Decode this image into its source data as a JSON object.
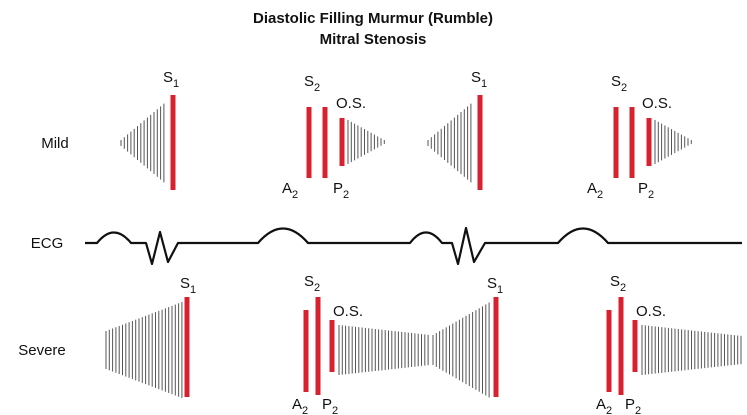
{
  "title": [
    "Diastolic Filling Murmur (Rumble)",
    "Mitral Stenosis"
  ],
  "ecg_label": "ECG",
  "mild": {
    "label": "Mild",
    "sounds": [
      {
        "main": "S",
        "sub": "1"
      },
      {
        "main": "S",
        "sub": "2"
      },
      {
        "main": "O.S."
      },
      {
        "main": "A",
        "sub": "2"
      },
      {
        "main": "P",
        "sub": "2"
      },
      {
        "main": "S",
        "sub": "1"
      },
      {
        "main": "S",
        "sub": "2"
      },
      {
        "main": "O.S."
      },
      {
        "main": "A",
        "sub": "2"
      },
      {
        "main": "P",
        "sub": "2"
      }
    ]
  },
  "severe": {
    "label": "Severe",
    "sounds": [
      {
        "main": "S",
        "sub": "1"
      },
      {
        "main": "S",
        "sub": "2"
      },
      {
        "main": "O.S."
      },
      {
        "main": "A",
        "sub": "2"
      },
      {
        "main": "P",
        "sub": "2"
      },
      {
        "main": "S",
        "sub": "1"
      },
      {
        "main": "S",
        "sub": "2"
      },
      {
        "main": "O.S."
      },
      {
        "main": "A",
        "sub": "2"
      },
      {
        "main": "P",
        "sub": "2"
      }
    ]
  }
}
